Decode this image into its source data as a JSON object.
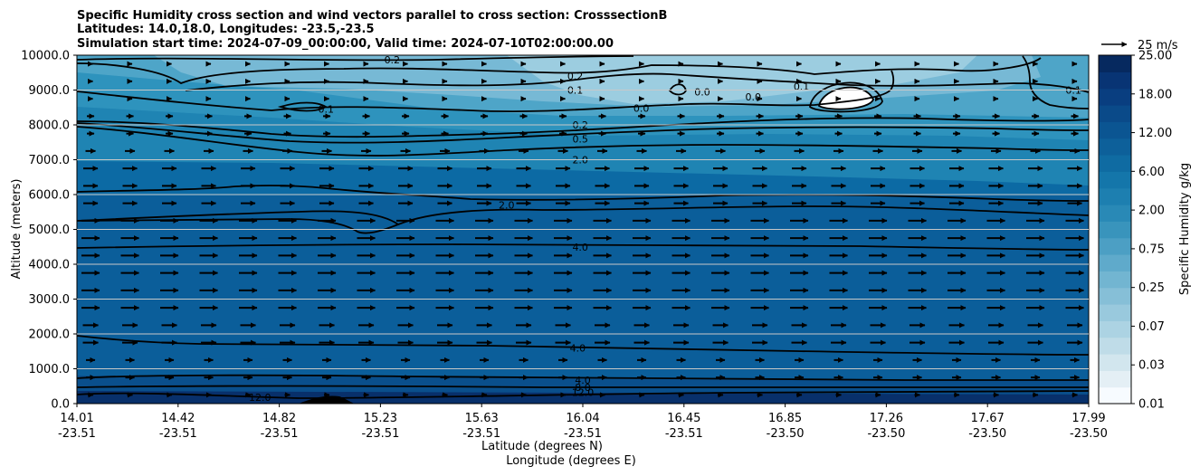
{
  "chart_data": {
    "type": "contour",
    "title_lines": [
      "Specific Humidity cross section and wind vectors parallel to cross section: CrosssectionB",
      "Latitudes: 14.0,18.0, Longitudes: -23.5,-23.5",
      "Simulation start time: 2024-07-09_00:00:00, Valid time: 2024-07-10T02:00:00.00"
    ],
    "ylabel": "Altitude (meters)",
    "xlabel_lat": "Latitude (degrees N)",
    "xlabel_lon": "Longitude (degrees E)",
    "ylim": [
      0,
      10000
    ],
    "y_ticks": [
      "0.0",
      "1000.0",
      "2000.0",
      "3000.0",
      "4000.0",
      "5000.0",
      "6000.0",
      "7000.0",
      "8000.0",
      "9000.0",
      "10000.0"
    ],
    "x_ticks_lat": [
      "14.01",
      "14.42",
      "14.82",
      "15.23",
      "15.63",
      "16.04",
      "16.45",
      "16.85",
      "17.26",
      "17.67",
      "17.99"
    ],
    "x_ticks_lon": [
      "-23.51",
      "-23.51",
      "-23.51",
      "-23.51",
      "-23.51",
      "-23.51",
      "-23.51",
      "-23.50",
      "-23.50",
      "-23.50",
      "-23.50"
    ],
    "colorbar_label": "Specific Humidity g/kg",
    "colorbar_ticks": [
      "25.00",
      "18.00",
      "12.00",
      "6.00",
      "2.00",
      "0.75",
      "0.25",
      "0.07",
      "0.03",
      "0.01"
    ],
    "colorbar_levels": [
      0.01,
      0.02,
      0.03,
      0.05,
      0.07,
      0.1,
      0.15,
      0.25,
      0.35,
      0.5,
      0.75,
      1.0,
      1.5,
      2.0,
      4.0,
      6.0,
      9.0,
      12.0,
      15.0,
      18.0,
      21.0,
      25.0
    ],
    "contour_labels": [
      {
        "text": "0.2",
        "lat": 15.25,
        "alt": 9870
      },
      {
        "text": "0.2",
        "lat": 15.97,
        "alt": 9400
      },
      {
        "text": "0.1",
        "lat": 15.97,
        "alt": 9000
      },
      {
        "text": "0.1",
        "lat": 14.99,
        "alt": 8450
      },
      {
        "text": "0.0",
        "lat": 16.23,
        "alt": 8480
      },
      {
        "text": "0.0",
        "lat": 16.47,
        "alt": 8950
      },
      {
        "text": "0.0",
        "lat": 16.67,
        "alt": 8800
      },
      {
        "text": "0.1",
        "lat": 16.86,
        "alt": 9100
      },
      {
        "text": "0.1",
        "lat": 17.93,
        "alt": 9000
      },
      {
        "text": "0.2",
        "lat": 15.99,
        "alt": 8000
      },
      {
        "text": "0.5",
        "lat": 15.99,
        "alt": 7600
      },
      {
        "text": "2.0",
        "lat": 15.99,
        "alt": 7000
      },
      {
        "text": "2.0",
        "lat": 15.7,
        "alt": 5700
      },
      {
        "text": "4.0",
        "lat": 15.99,
        "alt": 4500
      },
      {
        "text": "4.0",
        "lat": 15.98,
        "alt": 1600
      },
      {
        "text": "4.0",
        "lat": 16.0,
        "alt": 680
      },
      {
        "text": "8.0",
        "lat": 16.0,
        "alt": 470
      },
      {
        "text": "12.0",
        "lat": 16.0,
        "alt": 320
      },
      {
        "text": "12.0",
        "lat": 14.73,
        "alt": 180
      }
    ],
    "wind_key": {
      "label": "25 m/s",
      "speed": 25
    }
  }
}
